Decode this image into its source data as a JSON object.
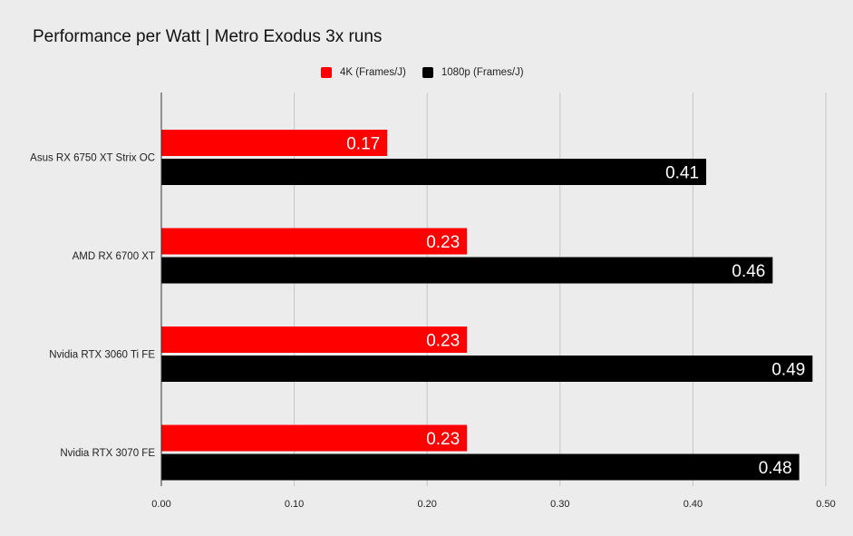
{
  "chart_data": {
    "type": "bar",
    "orientation": "horizontal",
    "title": "Performance per Watt | Metro Exodus 3x runs",
    "categories": [
      "Asus RX 6750 XT Strix OC",
      "AMD RX 6700 XT",
      "Nvidia RTX 3060 Ti FE",
      "Nvidia RTX 3070 FE"
    ],
    "series": [
      {
        "name": "4K (Frames/J)",
        "color": "#ff0000",
        "values": [
          0.17,
          0.23,
          0.23,
          0.23
        ],
        "labels": [
          "0.17",
          "0.23",
          "0.23",
          "0.23"
        ]
      },
      {
        "name": "1080p (Frames/J)",
        "color": "#000000",
        "values": [
          0.41,
          0.46,
          0.49,
          0.48
        ],
        "labels": [
          "0.41",
          "0.46",
          "0.49",
          "0.48"
        ]
      }
    ],
    "xlim": [
      0,
      0.5
    ],
    "xticks": [
      0,
      0.1,
      0.2,
      0.3,
      0.4,
      0.5
    ],
    "xtick_labels": [
      "0.00",
      "0.10",
      "0.20",
      "0.30",
      "0.40",
      "0.50"
    ],
    "xlabel": "",
    "ylabel": "",
    "grid": "vertical",
    "legend_position": "top-center"
  }
}
